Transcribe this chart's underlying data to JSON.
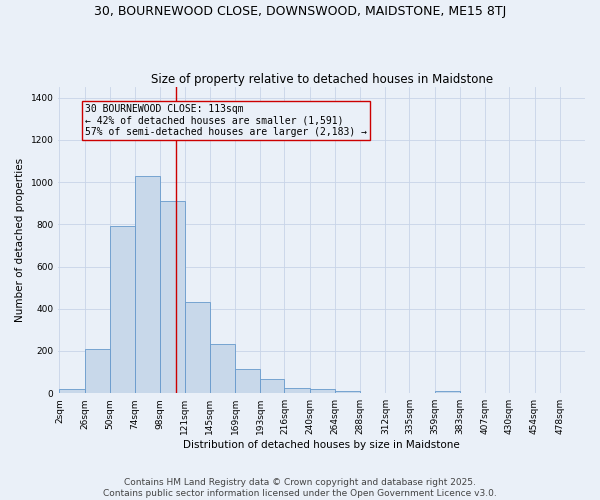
{
  "title": "30, BOURNEWOOD CLOSE, DOWNSWOOD, MAIDSTONE, ME15 8TJ",
  "subtitle": "Size of property relative to detached houses in Maidstone",
  "xlabel": "Distribution of detached houses by size in Maidstone",
  "ylabel": "Number of detached properties",
  "bar_edges": [
    2,
    26,
    50,
    74,
    98,
    121,
    145,
    169,
    193,
    216,
    240,
    264,
    288,
    312,
    335,
    359,
    383,
    407,
    430,
    454,
    478
  ],
  "bar_heights": [
    20,
    210,
    790,
    1030,
    910,
    430,
    235,
    115,
    65,
    25,
    20,
    10,
    0,
    0,
    0,
    10,
    0,
    0,
    0,
    0
  ],
  "bar_color": "#c8d8ea",
  "bar_edge_color": "#6699cc",
  "grid_color": "#c8d4e8",
  "bg_color": "#eaf0f8",
  "vline_x": 113,
  "vline_color": "#cc0000",
  "annotation_text": "30 BOURNEWOOD CLOSE: 113sqm\n← 42% of detached houses are smaller (1,591)\n57% of semi-detached houses are larger (2,183) →",
  "ylim": [
    0,
    1450
  ],
  "yticks": [
    0,
    200,
    400,
    600,
    800,
    1000,
    1200,
    1400
  ],
  "footer_line1": "Contains HM Land Registry data © Crown copyright and database right 2025.",
  "footer_line2": "Contains public sector information licensed under the Open Government Licence v3.0.",
  "title_fontsize": 9,
  "subtitle_fontsize": 8.5,
  "label_fontsize": 7.5,
  "tick_fontsize": 6.5,
  "annotation_fontsize": 7,
  "footer_fontsize": 6.5
}
